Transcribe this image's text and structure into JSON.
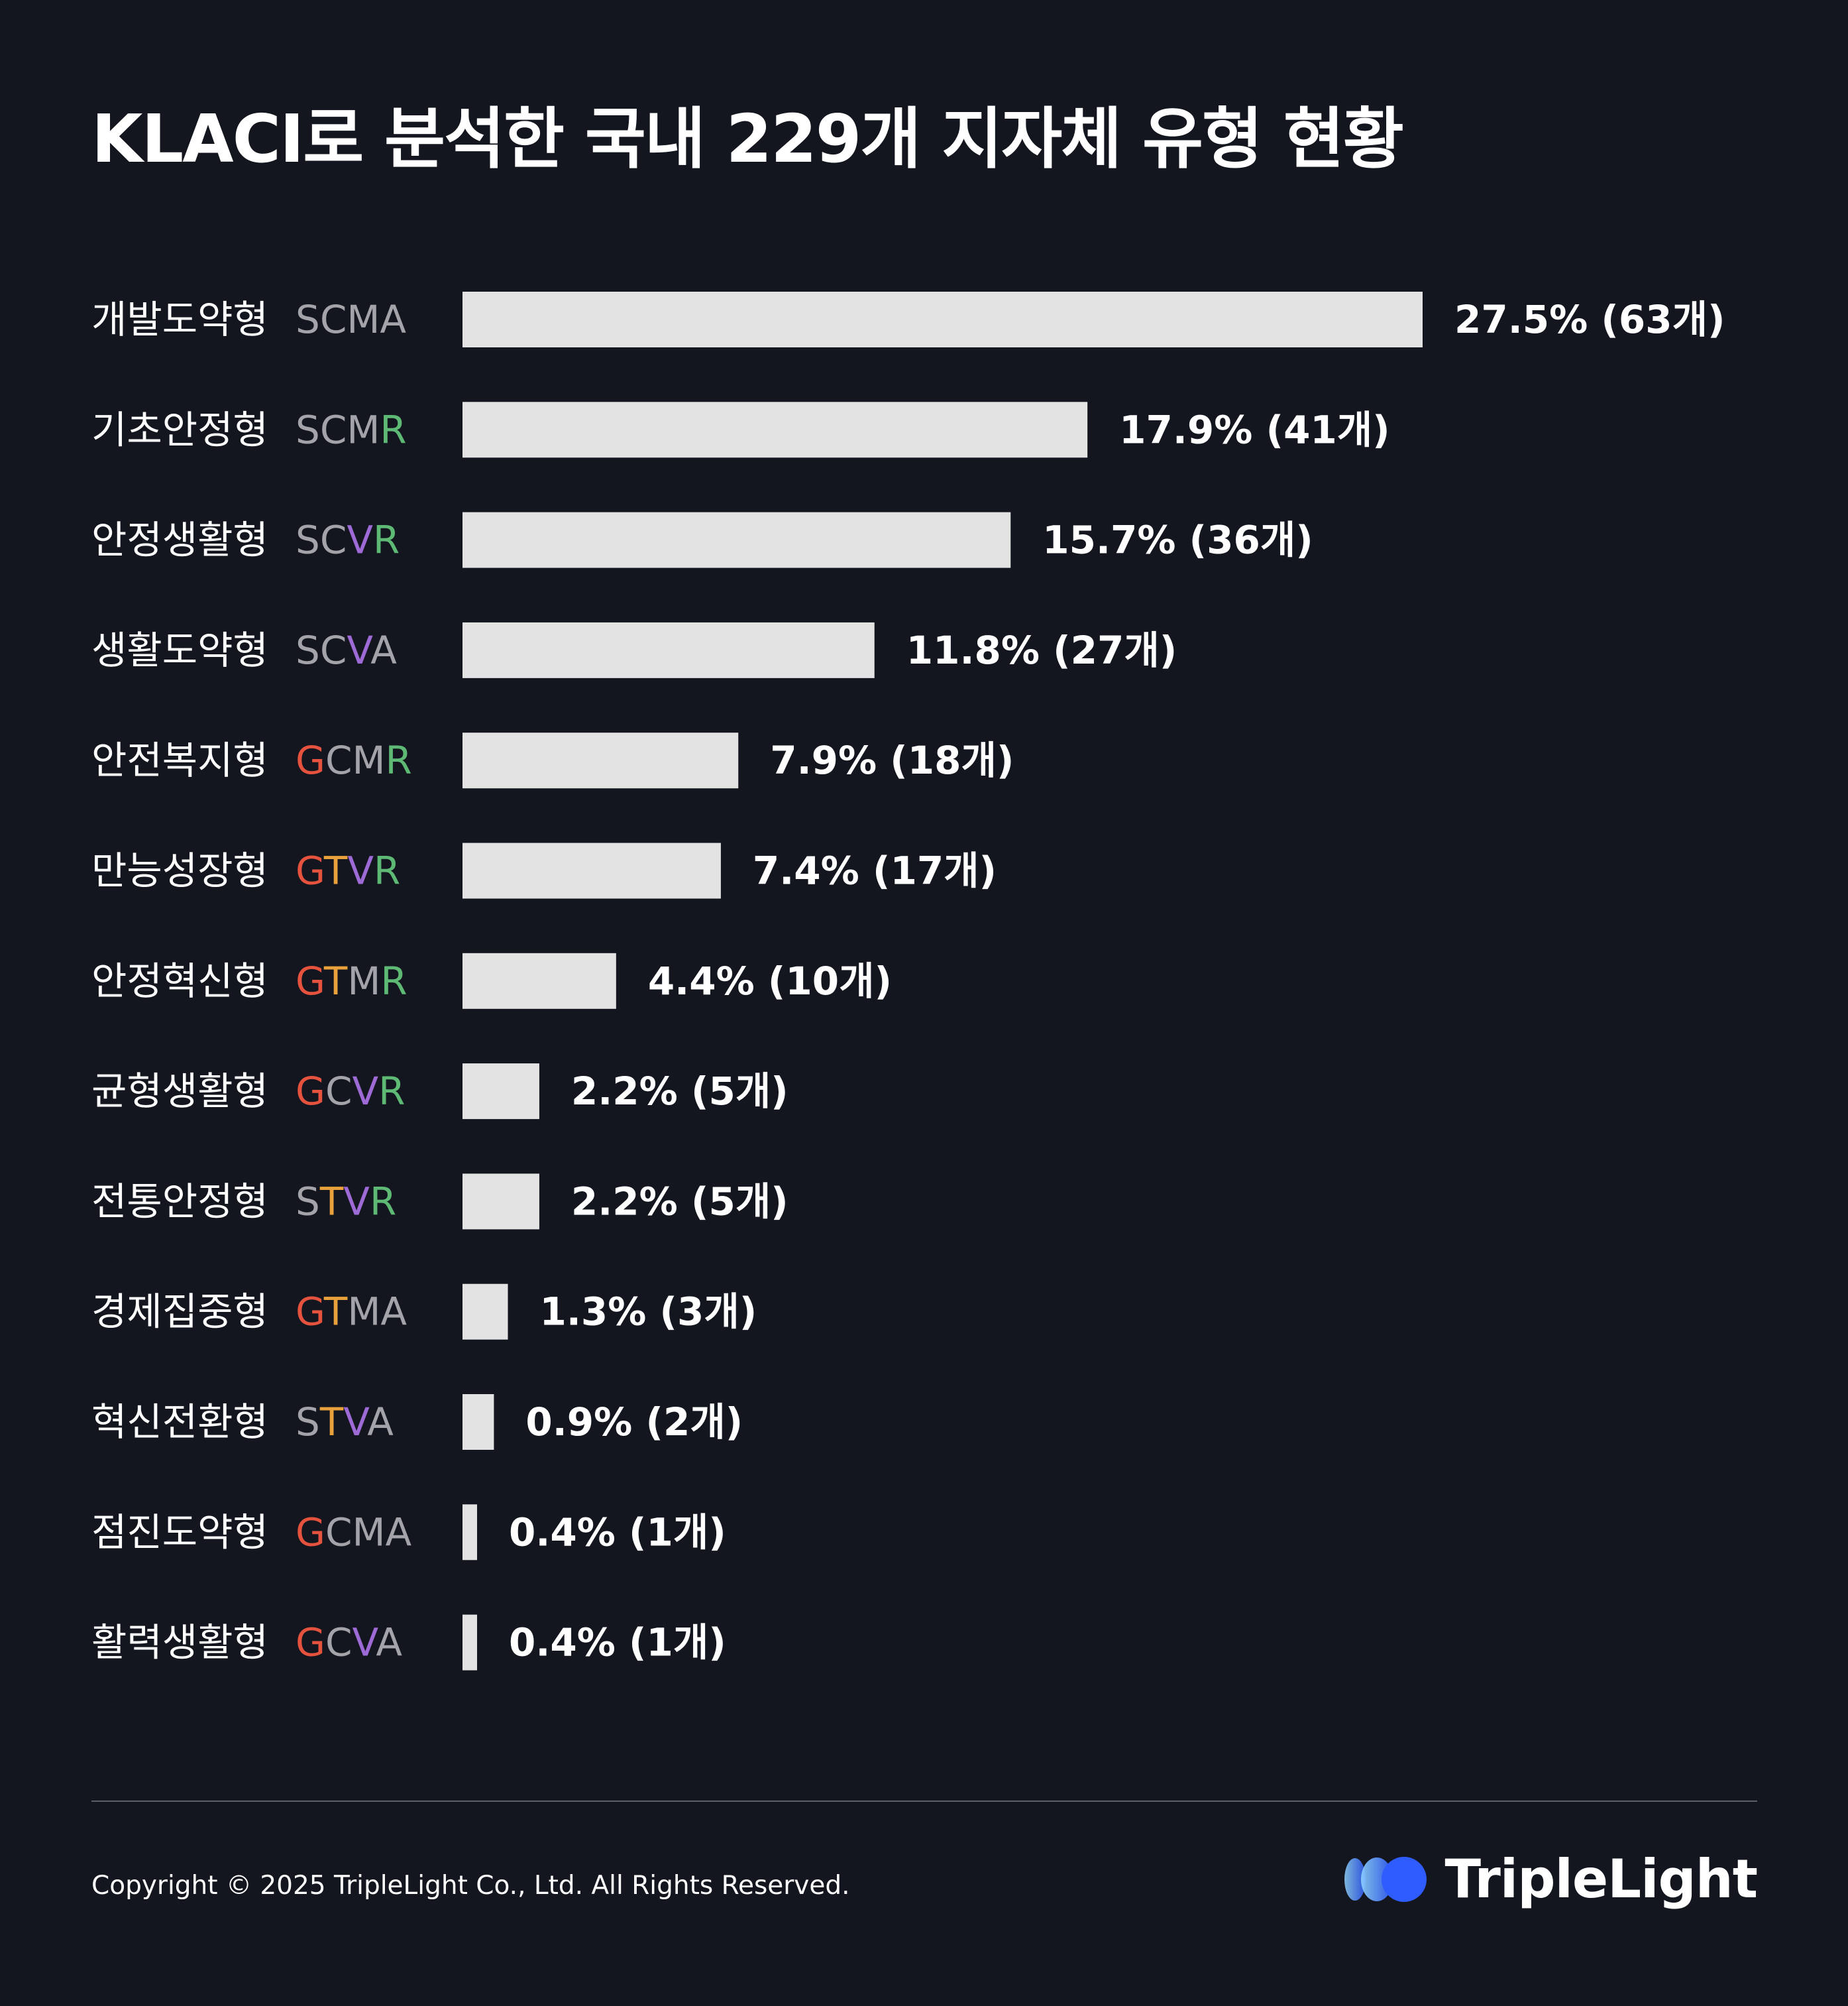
{
  "header": {
    "title": "KLACI로 분석한 국내 229개 지자체 유형 현황"
  },
  "chart_data": {
    "type": "bar",
    "orientation": "horizontal",
    "title": "KLACI로 분석한 국내 229개 지자체 유형 현황",
    "categories": [
      "개발도약형",
      "기초안정형",
      "안정생활형",
      "생활도약형",
      "안전복지형",
      "만능성장형",
      "안정혁신형",
      "균형생활형",
      "전통안정형",
      "경제집중형",
      "혁신전환형",
      "점진도약형",
      "활력생활형"
    ],
    "codes": [
      "SCMA",
      "SCMR",
      "SCVR",
      "SCVA",
      "GCMR",
      "GTVR",
      "GTMR",
      "GCVR",
      "STVR",
      "GTMA",
      "STVA",
      "GCMA",
      "GCVA"
    ],
    "values": [
      27.5,
      17.9,
      15.7,
      11.8,
      7.9,
      7.4,
      4.4,
      2.2,
      2.2,
      1.3,
      0.9,
      0.4,
      0.4
    ],
    "counts": [
      63,
      41,
      36,
      27,
      18,
      17,
      10,
      5,
      5,
      3,
      2,
      1,
      1
    ],
    "value_labels": [
      "27.5% (63개)",
      "17.9% (41개)",
      "15.7% (36개)",
      "11.8% (27개)",
      "7.9% (18개)",
      "7.4% (17개)",
      "4.4% (10개)",
      "2.2% (5개)",
      "2.2% (5개)",
      "1.3% (3개)",
      "0.9% (2개)",
      "0.4% (1개)",
      "0.4% (1개)"
    ],
    "unit": "%",
    "grid": false,
    "legend": "none"
  },
  "code_letter_colors": {
    "S": "#a3a3a9",
    "C": "#a3a3a9",
    "M": "#a3a3a9",
    "A": "#a3a3a9",
    "G": "#e5533e",
    "T": "#e9a23b",
    "V": "#9d6ad6",
    "R": "#5eb975",
    "T_gray": "#a3a3a9"
  },
  "colors": {
    "background": "#13161e",
    "bar": "#e3e3e3",
    "text": "#ffffff",
    "divider": "#5a5e68",
    "logo_gradient": [
      "#8fd3ff",
      "#2f5cff"
    ]
  },
  "footer": {
    "copyright": "Copyright © 2025 TripleLight Co., Ltd. All Rights Reserved.",
    "brand": "TripleLight"
  }
}
